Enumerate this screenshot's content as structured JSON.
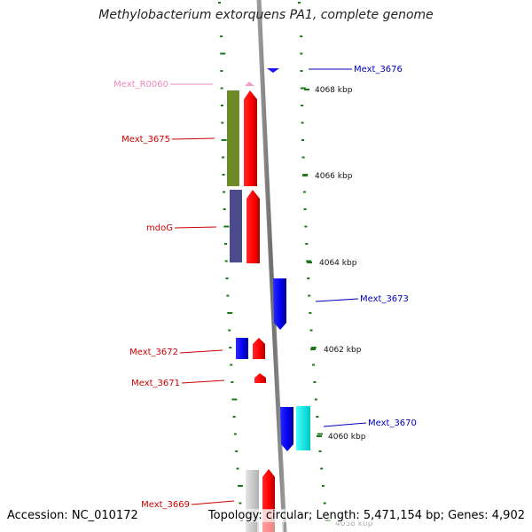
{
  "title": "Methylobacterium extorquens PA1, complete genome",
  "accession": "Accession: NC_010172",
  "summary": "Topology: circular; Length: 5,471,154 bp; Genes: 4,902",
  "colors": {
    "label_red": "#cc0000",
    "label_blue": "#0000bb",
    "label_pink": "#ee88bb",
    "dot_green": "#1a7a1a",
    "backbone": "#888888"
  },
  "gene_labels": [
    {
      "id": "Mext_3676",
      "color": "blue"
    },
    {
      "id": "Mext_R0060",
      "color": "pink"
    },
    {
      "id": "Mext_3675",
      "color": "red"
    },
    {
      "id": "mdoG",
      "color": "red"
    },
    {
      "id": "Mext_3673",
      "color": "blue"
    },
    {
      "id": "Mext_3672",
      "color": "red"
    },
    {
      "id": "Mext_3671",
      "color": "red"
    },
    {
      "id": "Mext_3670",
      "color": "blue"
    },
    {
      "id": "Mext_3669",
      "color": "red"
    }
  ],
  "ticks": [
    "4068 kbp",
    "4066 kbp",
    "4064 kbp",
    "4062 kbp",
    "4060 kbp",
    "4058 kbp"
  ]
}
